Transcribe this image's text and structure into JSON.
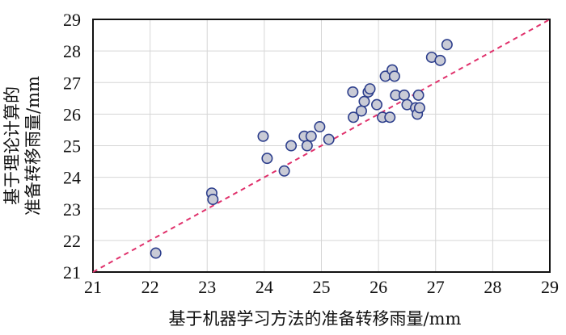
{
  "chart_data": {
    "type": "scatter",
    "title": "",
    "xlabel": "基于机器学习方法的准备转移雨量/mm",
    "ylabel_lines": [
      "基于理论计算的",
      "准备转移雨量/mm"
    ],
    "xlim": [
      21,
      29
    ],
    "ylim": [
      21,
      29
    ],
    "xticks": [
      21,
      22,
      23,
      24,
      25,
      26,
      27,
      28,
      29
    ],
    "yticks": [
      21,
      22,
      23,
      24,
      25,
      26,
      27,
      28,
      29
    ],
    "grid": true,
    "reference_line": {
      "style": "dashed",
      "from": [
        21,
        21
      ],
      "to": [
        29,
        29
      ],
      "color": "#e0306b"
    },
    "marker": {
      "fill": "#c9cbd6",
      "stroke": "#2c3e8c"
    },
    "points": [
      {
        "x": 22.1,
        "y": 21.6
      },
      {
        "x": 23.08,
        "y": 23.5
      },
      {
        "x": 23.1,
        "y": 23.3
      },
      {
        "x": 23.98,
        "y": 25.3
      },
      {
        "x": 24.05,
        "y": 24.6
      },
      {
        "x": 24.35,
        "y": 24.2
      },
      {
        "x": 24.47,
        "y": 25.0
      },
      {
        "x": 24.7,
        "y": 25.3
      },
      {
        "x": 24.75,
        "y": 25.0
      },
      {
        "x": 24.82,
        "y": 25.3
      },
      {
        "x": 24.97,
        "y": 25.6
      },
      {
        "x": 25.13,
        "y": 25.2
      },
      {
        "x": 25.55,
        "y": 26.7
      },
      {
        "x": 25.56,
        "y": 25.9
      },
      {
        "x": 25.7,
        "y": 26.1
      },
      {
        "x": 25.75,
        "y": 26.4
      },
      {
        "x": 25.82,
        "y": 26.7
      },
      {
        "x": 25.85,
        "y": 26.8
      },
      {
        "x": 25.97,
        "y": 26.3
      },
      {
        "x": 26.07,
        "y": 25.9
      },
      {
        "x": 26.12,
        "y": 27.2
      },
      {
        "x": 26.2,
        "y": 25.9
      },
      {
        "x": 26.24,
        "y": 27.4
      },
      {
        "x": 26.28,
        "y": 27.2
      },
      {
        "x": 26.3,
        "y": 26.6
      },
      {
        "x": 26.45,
        "y": 26.6
      },
      {
        "x": 26.5,
        "y": 26.3
      },
      {
        "x": 26.65,
        "y": 26.2
      },
      {
        "x": 26.68,
        "y": 26.0
      },
      {
        "x": 26.7,
        "y": 26.6
      },
      {
        "x": 26.72,
        "y": 26.2
      },
      {
        "x": 26.93,
        "y": 27.8
      },
      {
        "x": 27.08,
        "y": 27.7
      },
      {
        "x": 27.2,
        "y": 28.2
      }
    ]
  }
}
